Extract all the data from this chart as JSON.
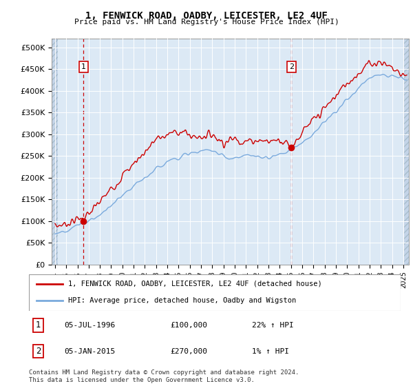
{
  "title": "1, FENWICK ROAD, OADBY, LEICESTER, LE2 4UF",
  "subtitle": "Price paid vs. HM Land Registry's House Price Index (HPI)",
  "background_plot": "#dce9f5",
  "background_hatch": "#c4d4e8",
  "line1_color": "#cc0000",
  "line2_color": "#7aaadd",
  "sale1_date_num": 1996.54,
  "sale2_date_num": 2015.04,
  "sale1_price": 100000,
  "sale2_price": 270000,
  "ylim_min": 0,
  "ylim_max": 520000,
  "xlim_min": 1993.7,
  "xlim_max": 2025.5,
  "legend_line1": "1, FENWICK ROAD, OADBY, LEICESTER, LE2 4UF (detached house)",
  "legend_line2": "HPI: Average price, detached house, Oadby and Wigston",
  "annotation1_label": "1",
  "annotation1_date": "05-JUL-1996",
  "annotation1_price": "£100,000",
  "annotation1_hpi": "22% ↑ HPI",
  "annotation2_label": "2",
  "annotation2_date": "05-JAN-2015",
  "annotation2_price": "£270,000",
  "annotation2_hpi": "1% ↑ HPI",
  "footer": "Contains HM Land Registry data © Crown copyright and database right 2024.\nThis data is licensed under the Open Government Licence v3.0.",
  "yticks": [
    0,
    50000,
    100000,
    150000,
    200000,
    250000,
    300000,
    350000,
    400000,
    450000,
    500000
  ],
  "ytick_labels": [
    "£0",
    "£50K",
    "£100K",
    "£150K",
    "£200K",
    "£250K",
    "£300K",
    "£350K",
    "£400K",
    "£450K",
    "£500K"
  ]
}
